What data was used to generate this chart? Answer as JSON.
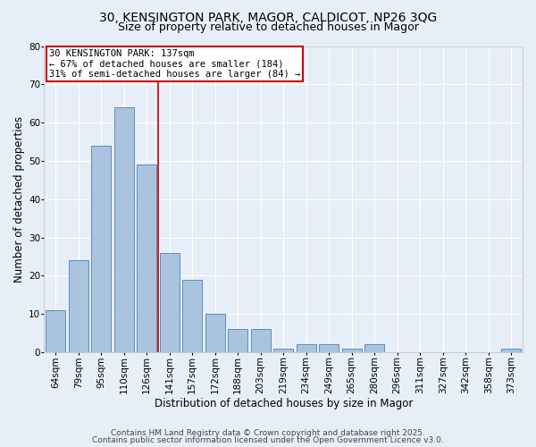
{
  "title_line1": "30, KENSINGTON PARK, MAGOR, CALDICOT, NP26 3QG",
  "title_line2": "Size of property relative to detached houses in Magor",
  "xlabel": "Distribution of detached houses by size in Magor",
  "ylabel": "Number of detached properties",
  "categories": [
    "64sqm",
    "79sqm",
    "95sqm",
    "110sqm",
    "126sqm",
    "141sqm",
    "157sqm",
    "172sqm",
    "188sqm",
    "203sqm",
    "219sqm",
    "234sqm",
    "249sqm",
    "265sqm",
    "280sqm",
    "296sqm",
    "311sqm",
    "327sqm",
    "342sqm",
    "358sqm",
    "373sqm"
  ],
  "values": [
    11,
    24,
    54,
    64,
    49,
    26,
    19,
    10,
    6,
    6,
    1,
    2,
    2,
    1,
    2,
    0,
    0,
    0,
    0,
    0,
    1
  ],
  "bar_color": "#aac4e0",
  "bar_edge_color": "#5b8db8",
  "redline_index": 5,
  "annotation_line1": "30 KENSINGTON PARK: 137sqm",
  "annotation_line2": "← 67% of detached houses are smaller (184)",
  "annotation_line3": "31% of semi-detached houses are larger (84) →",
  "annotation_box_color": "#ffffff",
  "annotation_box_edge": "#cc0000",
  "redline_color": "#cc0000",
  "ylim": [
    0,
    80
  ],
  "yticks": [
    0,
    10,
    20,
    30,
    40,
    50,
    60,
    70,
    80
  ],
  "background_color": "#e8eef8",
  "grid_color": "#ffffff",
  "footer_line1": "Contains HM Land Registry data © Crown copyright and database right 2025.",
  "footer_line2": "Contains public sector information licensed under the Open Government Licence v3.0.",
  "title_fontsize": 10,
  "subtitle_fontsize": 9,
  "axis_label_fontsize": 8.5,
  "tick_fontsize": 7.5,
  "annotation_fontsize": 7.5,
  "footer_fontsize": 6.5
}
